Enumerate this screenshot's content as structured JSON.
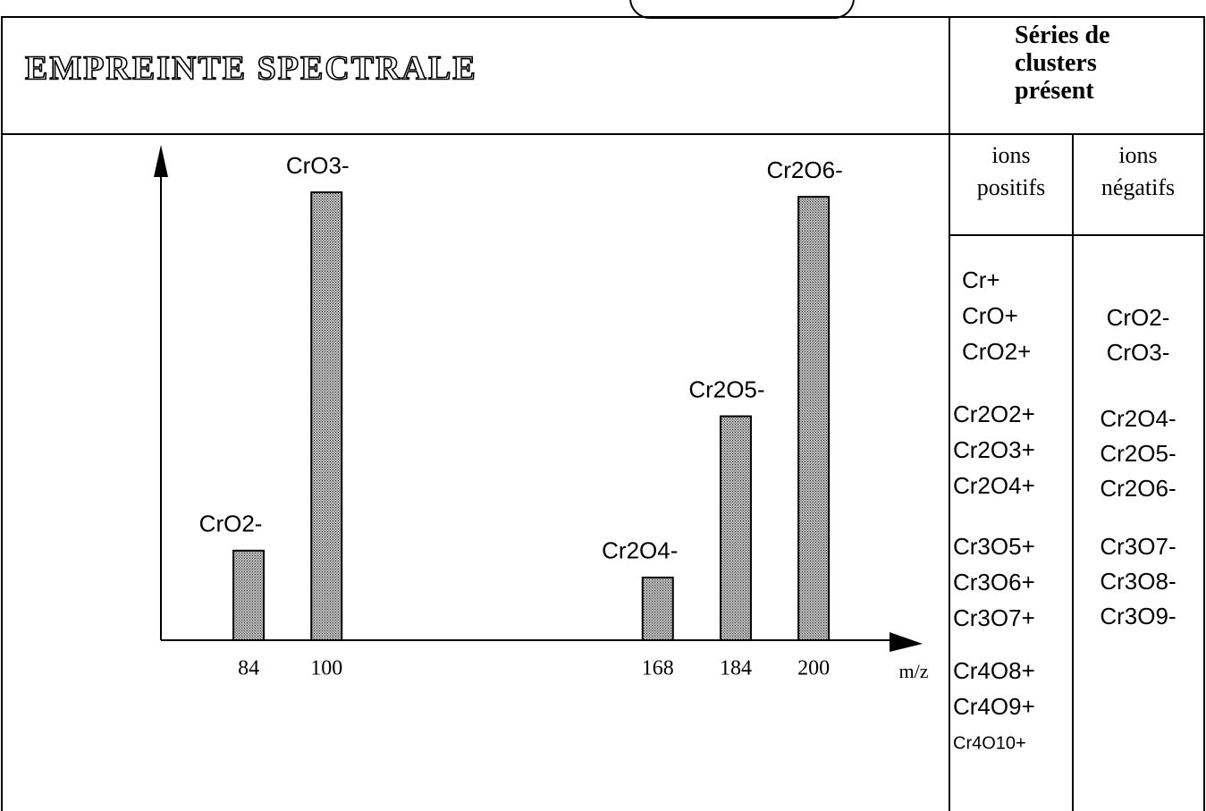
{
  "title": "EMPREINTE SPECTRALE",
  "chart_data": {
    "type": "bar",
    "x": [
      84,
      100,
      168,
      184,
      200
    ],
    "values": [
      20,
      100,
      14,
      50,
      99
    ],
    "bar_labels": [
      "CrO2-",
      "CrO3-",
      "Cr2O4-",
      "Cr2O5-",
      "Cr2O6-"
    ],
    "xlabel": "m/z",
    "xlim": [
      66,
      222
    ],
    "xticks": [
      84,
      100,
      168,
      184,
      200
    ],
    "ylim": [
      0,
      110
    ],
    "color": "#9a9a9a"
  },
  "table": {
    "title": "Séries de clusters présent",
    "columns": [
      "ions positifs",
      "ions négatifs"
    ],
    "positive": [
      [
        "Cr+",
        "CrO+",
        "CrO2+"
      ],
      [
        "Cr2O2+",
        "Cr2O3+",
        "Cr2O4+"
      ],
      [
        "Cr3O5+",
        "Cr3O6+",
        "Cr3O7+"
      ],
      [
        "Cr4O8+",
        "Cr4O9+",
        "Cr4O10+"
      ]
    ],
    "negative": [
      [
        "CrO2-",
        "CrO3-"
      ],
      [
        "Cr2O4-",
        "Cr2O5-",
        "Cr2O6-"
      ],
      [
        "Cr3O7-",
        "Cr3O8-",
        "Cr3O9-"
      ]
    ]
  }
}
